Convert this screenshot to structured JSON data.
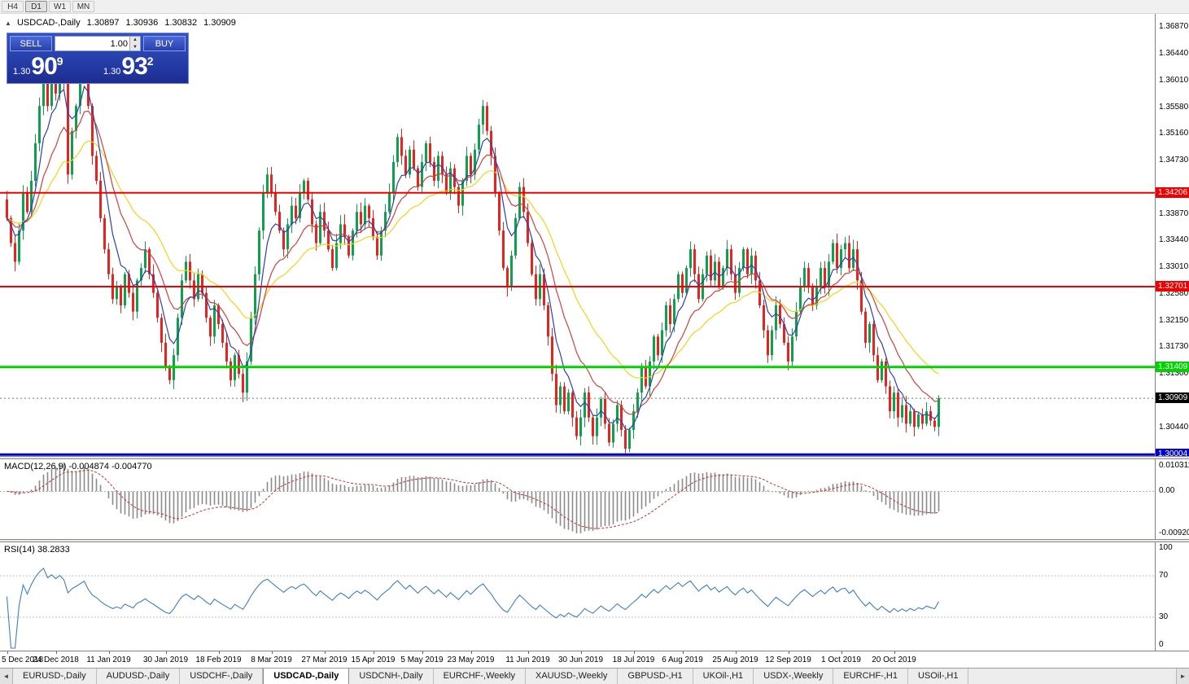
{
  "toolbar": {
    "timeframes": [
      "H4",
      "D1",
      "W1",
      "MN"
    ],
    "active": "D1"
  },
  "chart": {
    "info": {
      "collapse_icon": "▲",
      "symbol": "USDCAD-,Daily",
      "open": "1.30897",
      "high": "1.30936",
      "low": "1.30832",
      "close": "1.30909"
    },
    "trade": {
      "sell_label": "SELL",
      "buy_label": "BUY",
      "volume": "1.00",
      "sell_price": {
        "base": "1.30",
        "big": "90",
        "sup": "9"
      },
      "buy_price": {
        "base": "1.30",
        "big": "93",
        "sup": "2"
      }
    },
    "price_axis": {
      "max": 1.37079,
      "min": 1.29982,
      "ticks": [
        "1.36870",
        "1.36440",
        "1.36010",
        "1.35580",
        "1.35160",
        "1.34730",
        "1.33870",
        "1.33440",
        "1.33010",
        "1.32580",
        "1.32150",
        "1.31730",
        "1.31300",
        "1.30440"
      ]
    },
    "levels": [
      {
        "price": 1.34206,
        "label": "1.34206",
        "color": "#f00000",
        "width": 2,
        "style": "solid"
      },
      {
        "price": 1.32701,
        "label": "1.32701",
        "color": "#f00000",
        "width": 2,
        "style": "solid"
      },
      {
        "price": 1.31409,
        "label": "1.31409",
        "color": "#00d400",
        "width": 3,
        "style": "solid"
      },
      {
        "price": 1.30004,
        "label": "1.30004",
        "color": "#0000cc",
        "width": 3,
        "style": "solid"
      },
      {
        "price": 1.30909,
        "label": "1.30909",
        "color": "#000000",
        "width": 1,
        "style": "dotted"
      }
    ],
    "candle_colors": {
      "up": "#0fa04c",
      "down": "#e8231e"
    },
    "ma_colors": {
      "fast": "#2c41b0",
      "mid": "#d23f3f",
      "slow": "#f2d31b"
    },
    "candles": {
      "closes": [
        1.338,
        1.334,
        1.331,
        1.336,
        1.342,
        1.339,
        1.344,
        1.35,
        1.356,
        1.362,
        1.356,
        1.361,
        1.358,
        1.364,
        1.36,
        1.345,
        1.352,
        1.356,
        1.361,
        1.366,
        1.356,
        1.348,
        1.344,
        1.338,
        1.333,
        1.329,
        1.325,
        1.327,
        1.324,
        1.329,
        1.326,
        1.323,
        1.328,
        1.33,
        1.333,
        1.329,
        1.326,
        1.322,
        1.318,
        1.314,
        1.312,
        1.316,
        1.322,
        1.328,
        1.331,
        1.328,
        1.325,
        1.329,
        1.326,
        1.322,
        1.319,
        1.324,
        1.321,
        1.318,
        1.315,
        1.312,
        1.316,
        1.313,
        1.31,
        1.315,
        1.322,
        1.329,
        1.336,
        1.342,
        1.345,
        1.342,
        1.339,
        1.336,
        1.333,
        1.337,
        1.34,
        1.338,
        1.342,
        1.344,
        1.341,
        1.337,
        1.334,
        1.339,
        1.336,
        1.333,
        1.33,
        1.334,
        1.337,
        1.335,
        1.332,
        1.336,
        1.339,
        1.337,
        1.34,
        1.338,
        1.335,
        1.332,
        1.336,
        1.339,
        1.342,
        1.347,
        1.351,
        1.348,
        1.345,
        1.349,
        1.346,
        1.343,
        1.347,
        1.35,
        1.347,
        1.344,
        1.348,
        1.345,
        1.342,
        1.346,
        1.343,
        1.34,
        1.344,
        1.348,
        1.345,
        1.349,
        1.353,
        1.356,
        1.352,
        1.348,
        1.342,
        1.336,
        1.33,
        1.327,
        1.332,
        1.338,
        1.343,
        1.339,
        1.334,
        1.329,
        1.325,
        1.329,
        1.324,
        1.319,
        1.313,
        1.308,
        1.311,
        1.307,
        1.31,
        1.306,
        1.303,
        1.306,
        1.31,
        1.306,
        1.303,
        1.306,
        1.309,
        1.305,
        1.302,
        1.305,
        1.308,
        1.304,
        1.301,
        1.304,
        1.307,
        1.31,
        1.314,
        1.311,
        1.315,
        1.319,
        1.316,
        1.32,
        1.324,
        1.321,
        1.325,
        1.329,
        1.326,
        1.33,
        1.333,
        1.329,
        1.325,
        1.329,
        1.332,
        1.328,
        1.331,
        1.327,
        1.33,
        1.333,
        1.329,
        1.326,
        1.33,
        1.333,
        1.329,
        1.332,
        1.328,
        1.324,
        1.32,
        1.316,
        1.32,
        1.324,
        1.321,
        1.318,
        1.315,
        1.319,
        1.323,
        1.327,
        1.33,
        1.327,
        1.324,
        1.327,
        1.33,
        1.327,
        1.331,
        1.334,
        1.33,
        1.333,
        1.334,
        1.33,
        1.333,
        1.328,
        1.323,
        1.318,
        1.321,
        1.316,
        1.312,
        1.315,
        1.311,
        1.307,
        1.31,
        1.306,
        1.308,
        1.305,
        1.307,
        1.3045,
        1.3065,
        1.305,
        1.307,
        1.3055,
        1.3045,
        1.3091
      ]
    }
  },
  "macd": {
    "label": "MACD(12,26,9) -0.004874 -0.004770",
    "axis_top": "0.010311",
    "axis_zero": "0.00",
    "axis_bottom": "-0.009203"
  },
  "rsi": {
    "label": "RSI(14) 38.2833",
    "levels": [
      "100",
      "70",
      "30",
      "0"
    ]
  },
  "date_axis": [
    {
      "label": "5 Dec 2018",
      "i": 0
    },
    {
      "label": "24 Dec 2018",
      "i": 12
    },
    {
      "label": "11 Jan 2019",
      "i": 25
    },
    {
      "label": "30 Jan 2019",
      "i": 39
    },
    {
      "label": "18 Feb 2019",
      "i": 52
    },
    {
      "label": "8 Mar 2019",
      "i": 65
    },
    {
      "label": "27 Mar 2019",
      "i": 78
    },
    {
      "label": "15 Apr 2019",
      "i": 90
    },
    {
      "label": "5 May 2019",
      "i": 102
    },
    {
      "label": "23 May 2019",
      "i": 114
    },
    {
      "label": "11 Jun 2019",
      "i": 128
    },
    {
      "label": "30 Jun 2019",
      "i": 141
    },
    {
      "label": "18 Jul 2019",
      "i": 154
    },
    {
      "label": "6 Aug 2019",
      "i": 166
    },
    {
      "label": "25 Aug 2019",
      "i": 179
    },
    {
      "label": "12 Sep 2019",
      "i": 192
    },
    {
      "label": "1 Oct 2019",
      "i": 205
    },
    {
      "label": "20 Oct 2019",
      "i": 218
    }
  ],
  "tabs": {
    "active_index": 3,
    "scroll_left": "◄",
    "scroll_right": "►",
    "items": [
      "EURUSD-,Daily",
      "AUDUSD-,Daily",
      "USDCHF-,Daily",
      "USDCAD-,Daily",
      "USDCNH-,Daily",
      "EURCHF-,Weekly",
      "XAUUSD-,Weekly",
      "GBPUSD-,H1",
      "UKOil-,H1",
      "USDX-,Weekly",
      "EURCHF-,H1",
      "USOil-,H1"
    ]
  }
}
